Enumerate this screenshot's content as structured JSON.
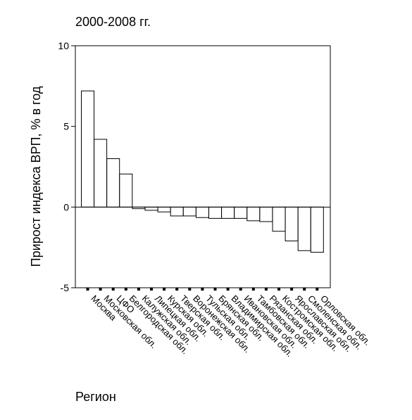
{
  "chart_data": {
    "type": "bar",
    "title": "2000-2008 гг.",
    "xlabel": "Регион",
    "ylabel": "Прирост индекса ВРП, % в год",
    "ylim": [
      -5,
      10
    ],
    "yticks": [
      -5,
      0,
      5,
      10
    ],
    "grid": false,
    "categories": [
      "Москва",
      "Московская обл.",
      "ЦФО",
      "Белгородская обл.",
      "Калужская обл.",
      "Липецкая обл.",
      "Курская обл.",
      "Тверская обл.",
      "Воронежская обл.",
      "Тульская обл.",
      "Брянская обл.",
      "Владимирская обл.",
      "Ивановская обл.",
      "Тамбовская обл.",
      "Рязанская обл.",
      "Костромская обл.",
      "Ярославская обл.",
      "Смоленская обл.",
      "Орловская обл."
    ],
    "values": [
      7.2,
      4.2,
      3.0,
      2.05,
      -0.1,
      -0.2,
      -0.3,
      -0.55,
      -0.55,
      -0.65,
      -0.7,
      -0.7,
      -0.7,
      -0.85,
      -0.9,
      -1.5,
      -2.1,
      -2.7,
      -2.8
    ]
  }
}
